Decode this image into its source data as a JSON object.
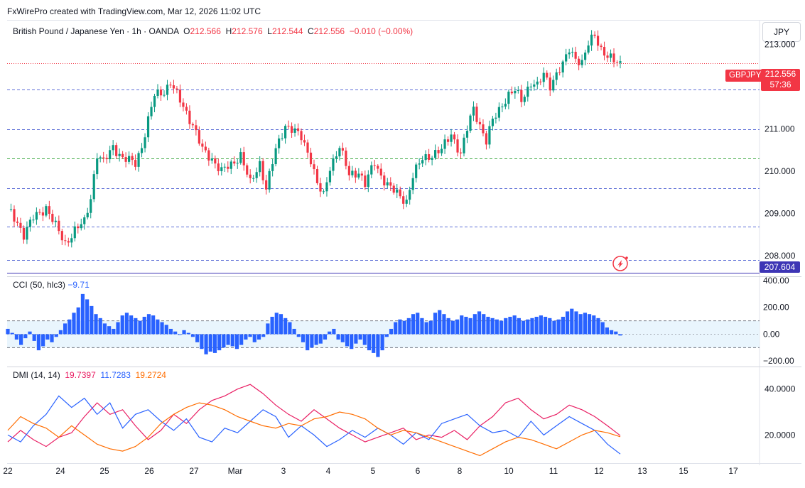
{
  "header": {
    "credit": "FxWirePro created with TradingView.com, Mar 12, 2026 11:02 UTC",
    "symbol": "British Pound / Japanese Yen · 1h · OANDA",
    "o_label": "O",
    "o_value": "212.566",
    "h_label": "H",
    "h_value": "212.576",
    "l_label": "L",
    "l_value": "212.544",
    "c_label": "C",
    "c_value": "212.556",
    "change": "−0.010 (−0.00%)"
  },
  "currency_button": "JPY",
  "price_tag": {
    "symbol": "GBPJPY",
    "price": "212.556",
    "countdown": "57:36"
  },
  "level_tag": "207.604",
  "colors": {
    "up": "#089981",
    "down": "#f23645",
    "cci": "#2962ff",
    "di_plus": "#2962ff",
    "di_minus": "#e91e63",
    "adx": "#ff6d00",
    "level_blue": "#5b6dd6",
    "level_green": "#4caf50",
    "level_purple": "#3d35b5"
  },
  "icons": {
    "alert": "sparkle-alert-icon"
  },
  "chart_data": [
    {
      "type": "candlestick",
      "title": "British Pound / Japanese Yen · 1h · OANDA",
      "ylim": [
        207.55,
        213.55
      ],
      "yticks": [
        "213.000",
        "212.000",
        "211.000",
        "210.000",
        "209.000",
        "208.000"
      ],
      "xticks": [
        "22",
        "24",
        "25",
        "26",
        "27",
        "Mar",
        "3",
        "4",
        "5",
        "6",
        "8",
        "10",
        "11",
        "12",
        "13",
        "15",
        "17"
      ],
      "horizontal_levels": [
        {
          "value": 211.93,
          "style": "dashed",
          "color": "#5b6dd6"
        },
        {
          "value": 211.0,
          "style": "dashed",
          "color": "#5b6dd6"
        },
        {
          "value": 210.3,
          "style": "dashed",
          "color": "#4caf50"
        },
        {
          "value": 209.6,
          "style": "dashed",
          "color": "#5b6dd6"
        },
        {
          "value": 208.7,
          "style": "dashed",
          "color": "#5b6dd6"
        },
        {
          "value": 207.9,
          "style": "dashed",
          "color": "#5b6dd6"
        },
        {
          "value": 207.604,
          "style": "solid",
          "color": "#3d35b5"
        }
      ],
      "last_price": 212.556,
      "close_path": [
        [
          0,
          209.1
        ],
        [
          3,
          208.8
        ],
        [
          5,
          208.5
        ],
        [
          8,
          208.9
        ],
        [
          12,
          209.15
        ],
        [
          15,
          208.7
        ],
        [
          18,
          208.3
        ],
        [
          21,
          208.6
        ],
        [
          24,
          208.8
        ],
        [
          26,
          209.4
        ],
        [
          28,
          210.4
        ],
        [
          30,
          210.2
        ],
        [
          33,
          210.6
        ],
        [
          36,
          210.3
        ],
        [
          38,
          210.25
        ],
        [
          40,
          210.2
        ],
        [
          42,
          210.6
        ],
        [
          44,
          211.2
        ],
        [
          46,
          211.8
        ],
        [
          49,
          211.9
        ],
        [
          51,
          212.1
        ],
        [
          53,
          211.8
        ],
        [
          56,
          211.4
        ],
        [
          58,
          211.1
        ],
        [
          61,
          210.5
        ],
        [
          64,
          210.3
        ],
        [
          67,
          210.0
        ],
        [
          70,
          210.15
        ],
        [
          73,
          210.4
        ],
        [
          76,
          209.7
        ],
        [
          79,
          210.2
        ],
        [
          81,
          209.6
        ],
        [
          84,
          210.5
        ],
        [
          87,
          211.1
        ],
        [
          89,
          211.0
        ],
        [
          92,
          210.8
        ],
        [
          95,
          210.3
        ],
        [
          97,
          209.7
        ],
        [
          99,
          209.4
        ],
        [
          101,
          210.1
        ],
        [
          104,
          210.6
        ],
        [
          107,
          209.9
        ],
        [
          110,
          210.0
        ],
        [
          112,
          209.7
        ],
        [
          115,
          210.2
        ],
        [
          117,
          209.9
        ],
        [
          120,
          209.6
        ],
        [
          123,
          209.4
        ],
        [
          125,
          209.3
        ],
        [
          127,
          209.9
        ],
        [
          130,
          210.3
        ],
        [
          133,
          210.4
        ],
        [
          136,
          210.5
        ],
        [
          139,
          210.9
        ],
        [
          142,
          210.4
        ],
        [
          144,
          211.0
        ],
        [
          146,
          211.5
        ],
        [
          148,
          211.1
        ],
        [
          150,
          210.7
        ],
        [
          152,
          211.2
        ],
        [
          155,
          211.6
        ],
        [
          157,
          211.8
        ],
        [
          159,
          211.9
        ],
        [
          161,
          211.7
        ],
        [
          164,
          212.1
        ],
        [
          166,
          212.0
        ],
        [
          168,
          212.3
        ],
        [
          170,
          212.05
        ],
        [
          172,
          212.3
        ],
        [
          174,
          212.5
        ],
        [
          176,
          212.9
        ],
        [
          178,
          212.7
        ],
        [
          180,
          212.55
        ],
        [
          182,
          213.0
        ],
        [
          184,
          213.25
        ],
        [
          186,
          212.9
        ],
        [
          188,
          212.7
        ],
        [
          190,
          212.6
        ],
        [
          192,
          212.556
        ]
      ]
    },
    {
      "type": "histogram",
      "title": "CCI (50, hlc3)",
      "last_value": "−9.71",
      "ylim": [
        -220,
        400
      ],
      "yticks": [
        "400.00",
        "200.00",
        "0.00",
        "−200.00"
      ],
      "band": [
        -100,
        100
      ],
      "values": [
        40,
        10,
        -40,
        -80,
        -30,
        20,
        -50,
        -120,
        -90,
        -40,
        -60,
        -20,
        30,
        80,
        110,
        160,
        200,
        300,
        260,
        210,
        150,
        120,
        80,
        60,
        40,
        90,
        140,
        160,
        140,
        120,
        100,
        130,
        150,
        140,
        110,
        90,
        70,
        40,
        20,
        0,
        30,
        10,
        -20,
        -60,
        -110,
        -150,
        -130,
        -140,
        -120,
        -100,
        -80,
        -90,
        -110,
        -80,
        -40,
        -20,
        -60,
        -40,
        -20,
        80,
        130,
        160,
        150,
        120,
        90,
        40,
        -20,
        -60,
        -120,
        -100,
        -80,
        -70,
        -40,
        20,
        40,
        -40,
        -60,
        -90,
        -110,
        -70,
        -40,
        -80,
        -120,
        -140,
        -170,
        -120,
        -20,
        40,
        90,
        110,
        100,
        120,
        150,
        160,
        120,
        90,
        100,
        160,
        180,
        150,
        120,
        100,
        110,
        140,
        130,
        120,
        150,
        170,
        150,
        130,
        120,
        110,
        100,
        120,
        130,
        140,
        120,
        100,
        110,
        120,
        130,
        140,
        130,
        120,
        100,
        110,
        130,
        170,
        190,
        170,
        150,
        160,
        150,
        140,
        120,
        90,
        50,
        30,
        20,
        -9.71
      ]
    },
    {
      "type": "line",
      "title": "DMI (14, 14)",
      "ylim": [
        9,
        47
      ],
      "yticks": [
        "40.0000",
        "20.0000"
      ],
      "series": [
        {
          "name": "19.7397",
          "color": "#e91e63",
          "values": [
            [
              0,
              17
            ],
            [
              4,
              22
            ],
            [
              8,
              18
            ],
            [
              12,
              15
            ],
            [
              16,
              19
            ],
            [
              20,
              21
            ],
            [
              24,
              28
            ],
            [
              28,
              34
            ],
            [
              32,
              29
            ],
            [
              36,
              31
            ],
            [
              40,
              24
            ],
            [
              44,
              18
            ],
            [
              48,
              22
            ],
            [
              52,
              29
            ],
            [
              56,
              25
            ],
            [
              60,
              31
            ],
            [
              64,
              35
            ],
            [
              68,
              37
            ],
            [
              72,
              40
            ],
            [
              76,
              42
            ],
            [
              80,
              38
            ],
            [
              84,
              33
            ],
            [
              88,
              29
            ],
            [
              92,
              26
            ],
            [
              96,
              31
            ],
            [
              100,
              27
            ],
            [
              104,
              23
            ],
            [
              108,
              20
            ],
            [
              112,
              17
            ],
            [
              116,
              19
            ],
            [
              120,
              21
            ],
            [
              124,
              23
            ],
            [
              128,
              18
            ],
            [
              132,
              20
            ],
            [
              136,
              19
            ],
            [
              140,
              22
            ],
            [
              144,
              18
            ],
            [
              148,
              24
            ],
            [
              152,
              28
            ],
            [
              156,
              34
            ],
            [
              160,
              36
            ],
            [
              164,
              31
            ],
            [
              168,
              27
            ],
            [
              172,
              29
            ],
            [
              176,
              33
            ],
            [
              180,
              31
            ],
            [
              184,
              28
            ],
            [
              188,
              24
            ],
            [
              192,
              19.74
            ]
          ]
        },
        {
          "name": "11.7283",
          "color": "#2962ff",
          "values": [
            [
              0,
              20
            ],
            [
              4,
              17
            ],
            [
              8,
              24
            ],
            [
              12,
              29
            ],
            [
              16,
              37
            ],
            [
              20,
              32
            ],
            [
              24,
              36
            ],
            [
              28,
              29
            ],
            [
              32,
              34
            ],
            [
              36,
              23
            ],
            [
              40,
              29
            ],
            [
              44,
              31
            ],
            [
              48,
              26
            ],
            [
              52,
              22
            ],
            [
              56,
              27
            ],
            [
              60,
              19
            ],
            [
              64,
              17
            ],
            [
              68,
              23
            ],
            [
              72,
              21
            ],
            [
              76,
              26
            ],
            [
              80,
              31
            ],
            [
              84,
              28
            ],
            [
              88,
              19
            ],
            [
              92,
              24
            ],
            [
              96,
              20
            ],
            [
              100,
              15
            ],
            [
              104,
              18
            ],
            [
              108,
              22
            ],
            [
              112,
              19
            ],
            [
              116,
              23
            ],
            [
              120,
              20
            ],
            [
              124,
              16
            ],
            [
              128,
              21
            ],
            [
              132,
              18
            ],
            [
              136,
              25
            ],
            [
              140,
              27
            ],
            [
              144,
              29
            ],
            [
              148,
              24
            ],
            [
              152,
              21
            ],
            [
              156,
              22
            ],
            [
              160,
              19
            ],
            [
              164,
              26
            ],
            [
              168,
              20
            ],
            [
              172,
              24
            ],
            [
              176,
              28
            ],
            [
              180,
              25
            ],
            [
              184,
              22
            ],
            [
              188,
              16
            ],
            [
              192,
              11.73
            ]
          ]
        },
        {
          "name": "19.2724",
          "color": "#ff6d00",
          "values": [
            [
              0,
              22
            ],
            [
              4,
              28
            ],
            [
              8,
              25
            ],
            [
              12,
              23
            ],
            [
              16,
              19
            ],
            [
              20,
              24
            ],
            [
              24,
              20
            ],
            [
              28,
              16
            ],
            [
              32,
              14
            ],
            [
              36,
              13
            ],
            [
              40,
              15
            ],
            [
              44,
              19
            ],
            [
              48,
              25
            ],
            [
              52,
              29
            ],
            [
              56,
              32
            ],
            [
              60,
              34
            ],
            [
              64,
              33
            ],
            [
              68,
              31
            ],
            [
              72,
              28
            ],
            [
              76,
              26
            ],
            [
              80,
              24
            ],
            [
              84,
              23
            ],
            [
              88,
              25
            ],
            [
              92,
              24
            ],
            [
              96,
              27
            ],
            [
              100,
              28
            ],
            [
              104,
              30
            ],
            [
              108,
              29
            ],
            [
              112,
              27
            ],
            [
              116,
              23
            ],
            [
              120,
              20
            ],
            [
              124,
              22
            ],
            [
              128,
              21
            ],
            [
              132,
              19
            ],
            [
              136,
              17
            ],
            [
              140,
              15
            ],
            [
              144,
              13
            ],
            [
              148,
              11
            ],
            [
              152,
              14
            ],
            [
              156,
              17
            ],
            [
              160,
              19
            ],
            [
              164,
              18
            ],
            [
              168,
              16
            ],
            [
              172,
              14
            ],
            [
              176,
              17
            ],
            [
              180,
              20
            ],
            [
              184,
              22
            ],
            [
              188,
              21
            ],
            [
              192,
              19.27
            ]
          ]
        }
      ]
    }
  ]
}
